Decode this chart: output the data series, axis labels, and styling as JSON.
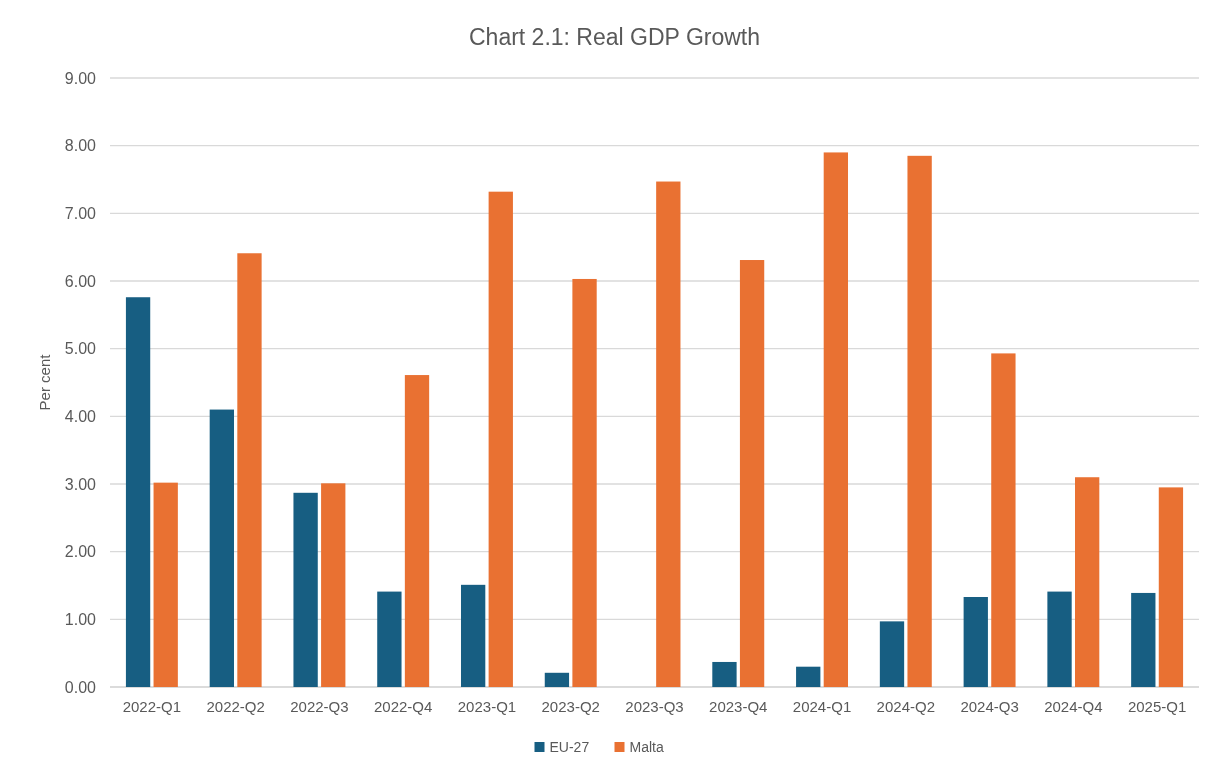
{
  "chart_data": {
    "type": "bar",
    "title": "Chart 2.1: Real GDP Growth",
    "ylabel": "Per cent",
    "categories": [
      "2022-Q1",
      "2022-Q2",
      "2022-Q3",
      "2022-Q4",
      "2023-Q1",
      "2023-Q2",
      "2023-Q3",
      "2023-Q4",
      "2024-Q1",
      "2024-Q2",
      "2024-Q3",
      "2024-Q4",
      "2025-Q1"
    ],
    "series": [
      {
        "name": "EU-27",
        "color": "#175e82",
        "values": [
          5.76,
          4.1,
          2.87,
          1.41,
          1.51,
          0.21,
          0,
          0.37,
          0.3,
          0.97,
          1.33,
          1.41,
          1.39
        ]
      },
      {
        "name": "Malta",
        "color": "#e97132",
        "values": [
          3.02,
          6.41,
          3.01,
          4.61,
          7.32,
          6.03,
          7.47,
          6.31,
          7.9,
          7.85,
          4.93,
          3.1,
          2.95
        ]
      }
    ],
    "ylim": [
      0,
      9
    ],
    "yticks": [
      {
        "value": 0,
        "label": "0.00"
      },
      {
        "value": 1,
        "label": "1.00"
      },
      {
        "value": 2,
        "label": "2.00"
      },
      {
        "value": 3,
        "label": "3.00"
      },
      {
        "value": 4,
        "label": "4.00"
      },
      {
        "value": 5,
        "label": "5.00"
      },
      {
        "value": 6,
        "label": "6.00"
      },
      {
        "value": 7,
        "label": "7.00"
      },
      {
        "value": 8,
        "label": "8.00"
      },
      {
        "value": 9,
        "label": "9.00"
      }
    ],
    "grid": "y",
    "legend": "bottom"
  }
}
